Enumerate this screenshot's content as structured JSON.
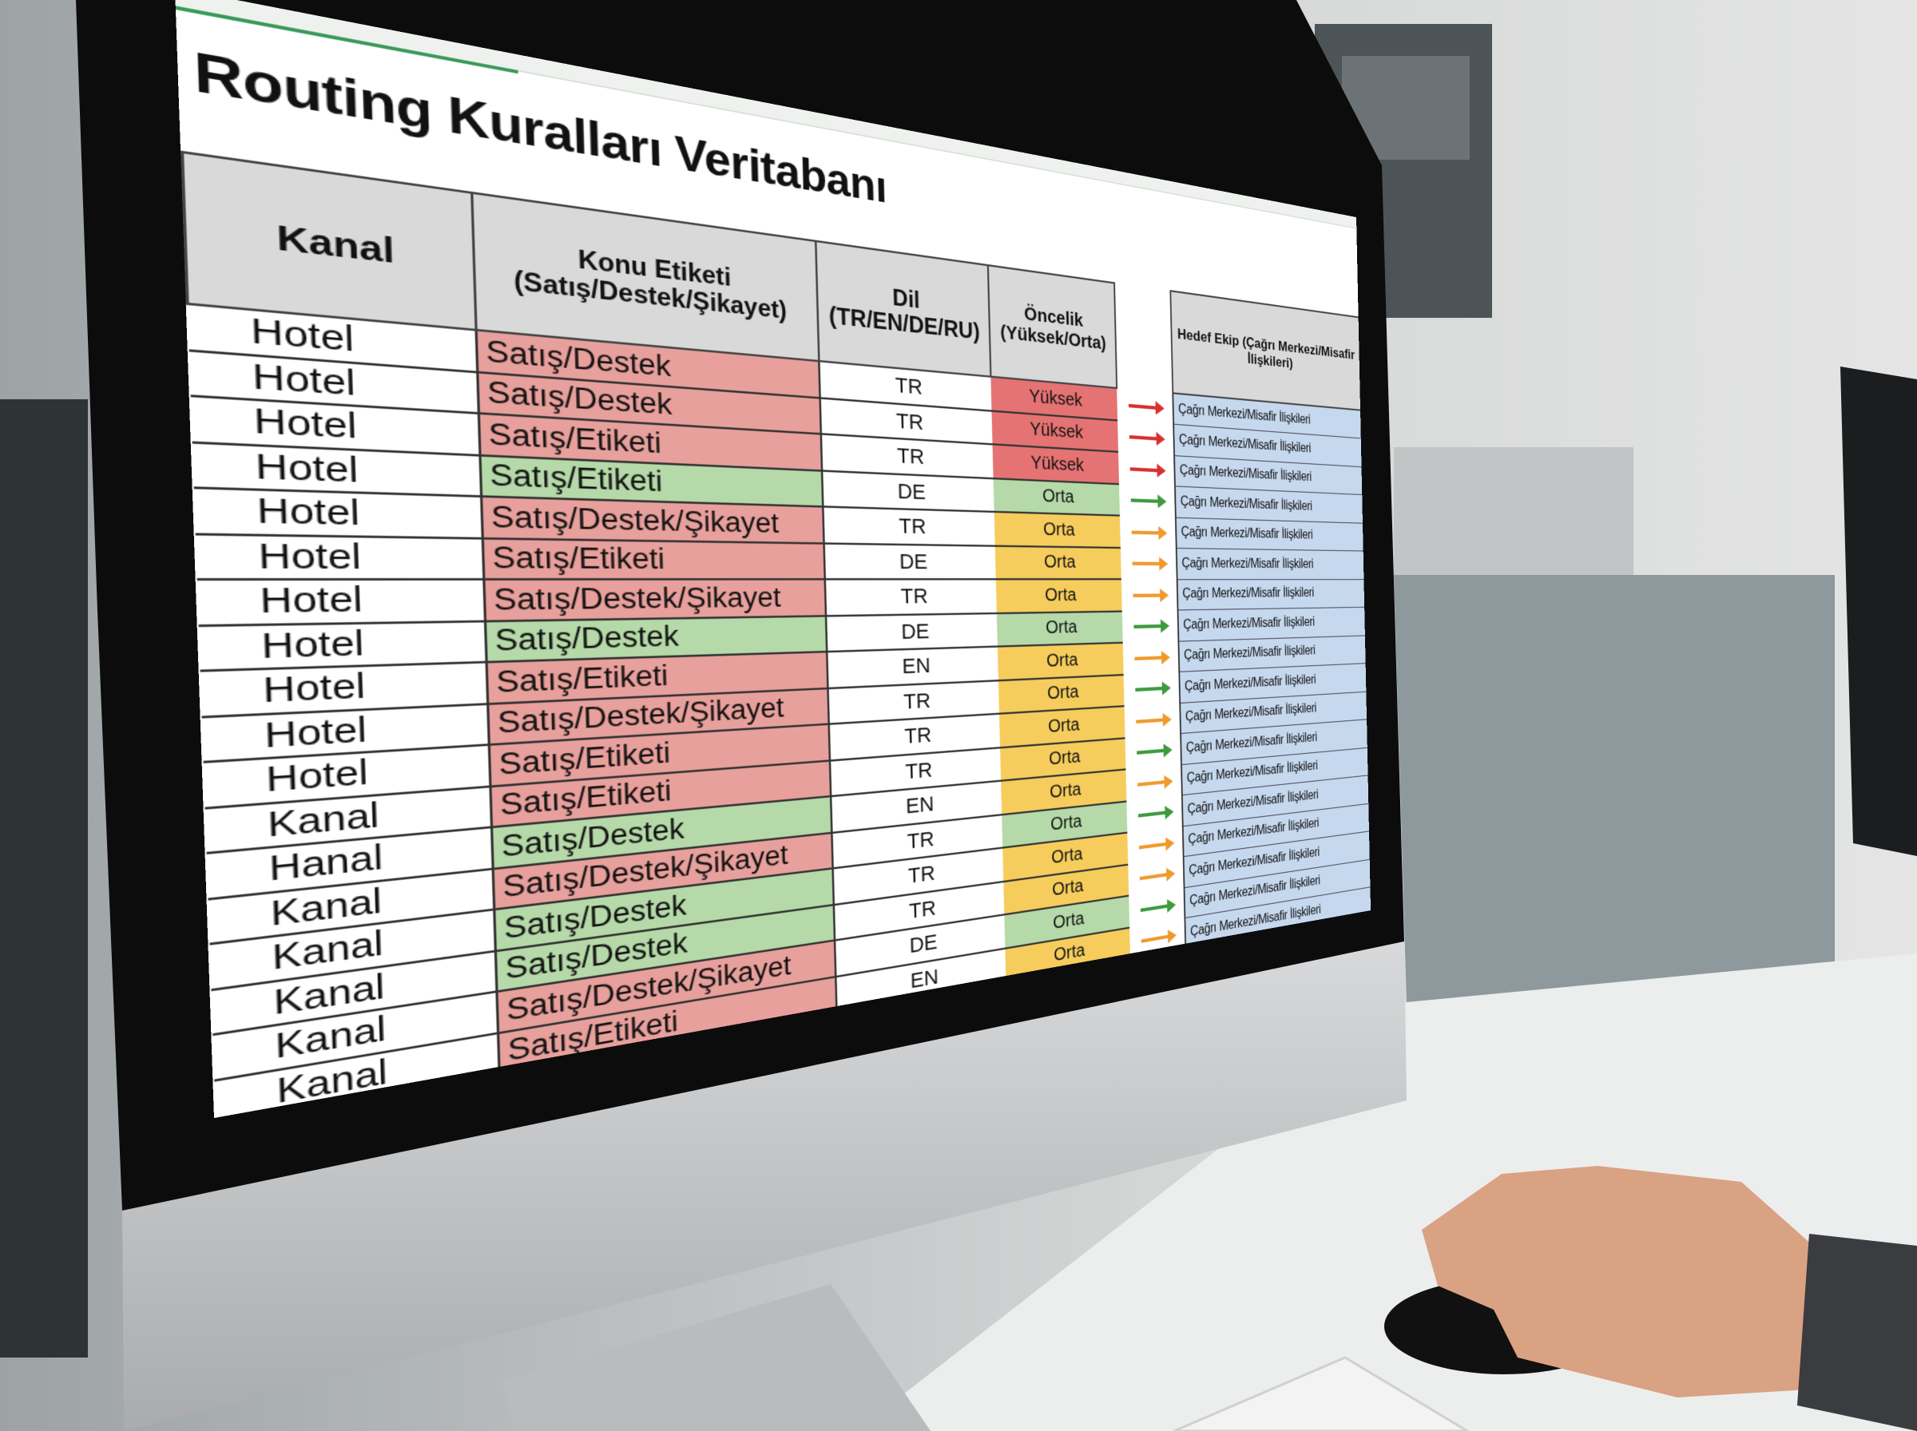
{
  "sheet": {
    "title": "Routing Kuralları Veritabanı",
    "headers": {
      "kanal": "Kanal",
      "konu": "Konu Etiketi (Satış/Destek/Şikayet)",
      "dil": "Dil (TR/EN/DE/RU)",
      "oncelik": "Öncelik (Yüksek/Orta)",
      "hedef": "Hedef Ekip (Çağrı Merkezi/Misafir İlişkileri)"
    },
    "palette": {
      "red": "#e8a09c",
      "green": "#b5d9a8",
      "yellow": "#f6cd5c",
      "prio_red": "#e57373",
      "arrow_red": "#d9302f",
      "arrow_green": "#3f9a3f",
      "arrow_orange": "#ee9b2e",
      "hedef_bg": "#c6d8ee"
    },
    "kanal": [
      "Hotel",
      "Hotel",
      "Hotel",
      "Hotel",
      "Hotel",
      "Hotel",
      "Hotel",
      "Hotel",
      "Hotel",
      "Hotel",
      "Hotel",
      "Kanal",
      "Hanal",
      "Kanal",
      "Kanal",
      "Kanal",
      "Kanal",
      "Kanal"
    ],
    "konu": [
      {
        "label": "Satış/Destek",
        "color": "red"
      },
      {
        "label": "Satış/Destek",
        "color": "red"
      },
      {
        "label": "Satış/Etiketi",
        "color": "red"
      },
      {
        "label": "Satış/Etiketi",
        "color": "green"
      },
      {
        "label": "Satış/Destek/Şikayet",
        "color": "red"
      },
      {
        "label": "Satış/Etiketi",
        "color": "red"
      },
      {
        "label": "Satış/Destek/Şikayet",
        "color": "red"
      },
      {
        "label": "Satış/Destek",
        "color": "green"
      },
      {
        "label": "Satış/Etiketi",
        "color": "red"
      },
      {
        "label": "Satış/Destek/Şikayet",
        "color": "red"
      },
      {
        "label": "Satış/Etiketi",
        "color": "red"
      },
      {
        "label": "Satış/Etiketi",
        "color": "red"
      },
      {
        "label": "Satış/Destek",
        "color": "green"
      },
      {
        "label": "Satış/Destek/Şikayet",
        "color": "red"
      },
      {
        "label": "Satış/Destek",
        "color": "green"
      },
      {
        "label": "Satış/Destek",
        "color": "green"
      },
      {
        "label": "Satış/Destek/Şikayet",
        "color": "red"
      },
      {
        "label": "Satış/Etiketi",
        "color": "red"
      }
    ],
    "dil": [
      "TR",
      "TR",
      "TR",
      "DE",
      "TR",
      "DE",
      "TR",
      "DE",
      "EN",
      "TR",
      "TR",
      "TR",
      "EN",
      "TR",
      "TR",
      "TR",
      "DE",
      "EN"
    ],
    "oncelik": [
      {
        "label": "Yüksek",
        "color": "prio_red"
      },
      {
        "label": "Yüksek",
        "color": "prio_red"
      },
      {
        "label": "Yüksek",
        "color": "prio_red"
      },
      {
        "label": "Orta",
        "color": "green"
      },
      {
        "label": "Orta",
        "color": "yellow"
      },
      {
        "label": "Orta",
        "color": "yellow"
      },
      {
        "label": "Orta",
        "color": "yellow"
      },
      {
        "label": "Orta",
        "color": "green"
      },
      {
        "label": "Orta",
        "color": "yellow"
      },
      {
        "label": "Orta",
        "color": "yellow"
      },
      {
        "label": "Orta",
        "color": "yellow"
      },
      {
        "label": "Orta",
        "color": "yellow"
      },
      {
        "label": "Orta",
        "color": "yellow"
      },
      {
        "label": "Orta",
        "color": "green"
      },
      {
        "label": "Orta",
        "color": "yellow"
      },
      {
        "label": "Orta",
        "color": "yellow"
      },
      {
        "label": "Orta",
        "color": "green"
      },
      {
        "label": "Orta",
        "color": "yellow"
      }
    ],
    "arrows": [
      "arrow_red",
      "arrow_red",
      "arrow_red",
      "arrow_green",
      "arrow_orange",
      "arrow_orange",
      "arrow_orange",
      "arrow_green",
      "arrow_orange",
      "arrow_green",
      "arrow_orange",
      "arrow_green",
      "arrow_orange",
      "arrow_green",
      "arrow_orange",
      "arrow_orange",
      "arrow_green",
      "arrow_orange"
    ],
    "hedef": [
      "Çağrı Merkezi/Misafir İlişkileri",
      "Çağrı Merkezi/Misafir İlişkileri",
      "Çağrı Merkezi/Misafir İlişkileri",
      "Çağrı Merkezi/Misafir İlişkileri",
      "Çağrı Merkezi/Misafir İlişkileri",
      "Çağrı Merkezi/Misafir İlişkileri",
      "Çağrı Merkezi/Misafir İlişkileri",
      "Çağrı Merkezi/Misafir İlişkileri",
      "Çağrı Merkezi/Misafir İlişkileri",
      "Çağrı Merkezi/Misafir İlişkileri",
      "Çağrı Merkezi/Misafir İlişkileri",
      "Çağrı Merkezi/Misafir İlişkileri",
      "Çağrı Merkezi/Misafir İlişkileri",
      "Çağrı Merkezi/Misafir İlişkileri",
      "Çağrı Merkezi/Misafir İlişkileri",
      "Çağrı Merkezi/Misafir İlişkileri",
      "Çağrı Merkezi/Misafir İlişkileri",
      "Çağrı Merkezi/Misafir İlişkileri"
    ]
  }
}
